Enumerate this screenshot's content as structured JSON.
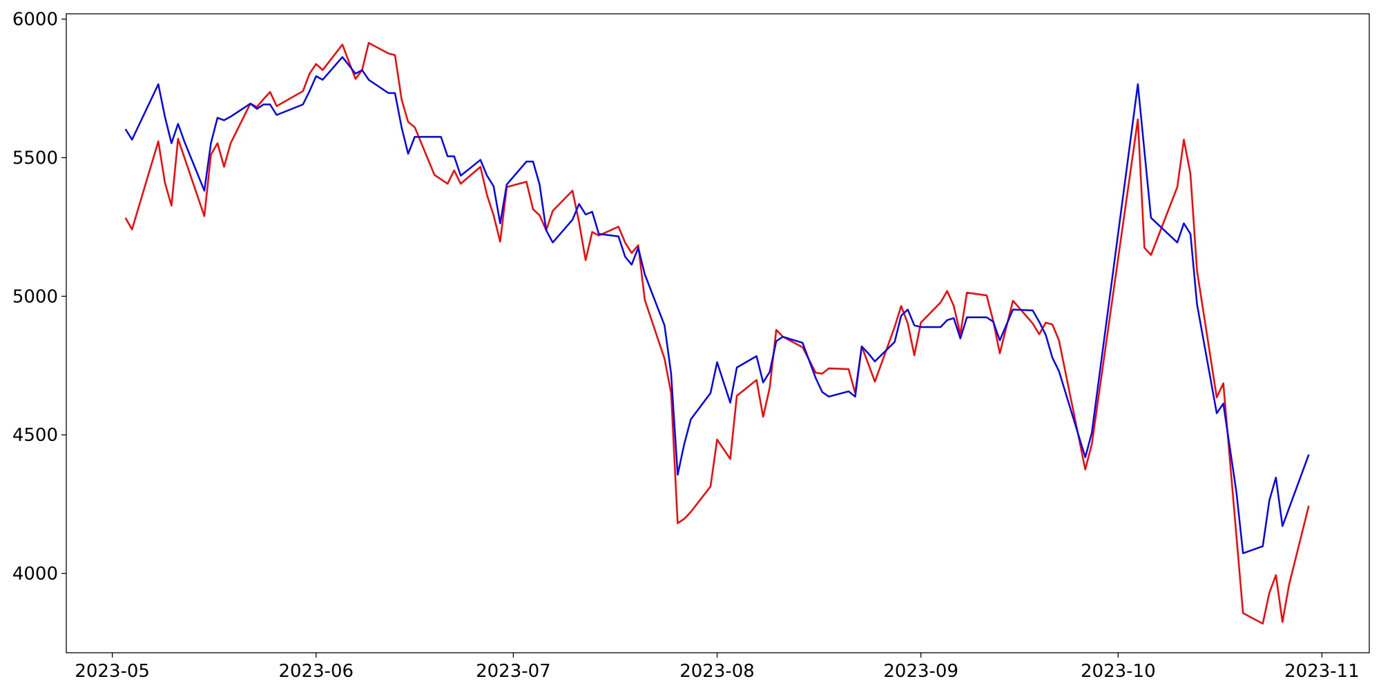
{
  "chart_data": {
    "type": "line",
    "xlim": [
      19471,
      19669.2
    ],
    "ylim": [
      3714,
      6019
    ],
    "xticks": [
      {
        "value": 19478,
        "label": "2023-05"
      },
      {
        "value": 19509,
        "label": "2023-06"
      },
      {
        "value": 19539,
        "label": "2023-07"
      },
      {
        "value": 19570,
        "label": "2023-08"
      },
      {
        "value": 19601,
        "label": "2023-09"
      },
      {
        "value": 19631,
        "label": "2023-10"
      },
      {
        "value": 19662,
        "label": "2023-11"
      }
    ],
    "yticks": [
      4000,
      4500,
      5000,
      5500,
      6000
    ],
    "grid": false,
    "series": [
      {
        "color": "#ff0000",
        "x": [
          19480,
          19481,
          19485,
          19486,
          19487,
          19488,
          19492,
          19493,
          19494,
          19495,
          19496,
          19499,
          19500,
          19501,
          19502,
          19503,
          19507,
          19508,
          19509,
          19510,
          19513,
          19515,
          19516,
          19517,
          19520,
          19521,
          19522,
          19523,
          19524,
          19527,
          19529,
          19530,
          19531,
          19534,
          19535,
          19536,
          19537,
          19538,
          19541,
          19542,
          19543,
          19544,
          19545,
          19548,
          19549,
          19550,
          19551,
          19552,
          19555,
          19556,
          19557,
          19558,
          19559,
          19562,
          19563,
          19564,
          19565,
          19566,
          19569,
          19570,
          19572,
          19573,
          19576,
          19577,
          19578,
          19579,
          19580,
          19583,
          19585,
          19586,
          19587,
          19590,
          19591,
          19592,
          19593,
          19594,
          19597,
          19598,
          19599,
          19600,
          19601,
          19604,
          19605,
          19606,
          19607,
          19608,
          19611,
          19612,
          19613,
          19615,
          19618,
          19619,
          19620,
          19621,
          19622,
          19626,
          19627,
          19634,
          19635,
          19636,
          19640,
          19641,
          19642,
          19643,
          19646,
          19647,
          19650,
          19653,
          19654,
          19655,
          19656,
          19657,
          19660
        ],
        "values": [
          5283,
          5241,
          5559,
          5410,
          5327,
          5568,
          5289,
          5511,
          5552,
          5467,
          5552,
          5695,
          5683,
          5711,
          5737,
          5686,
          5740,
          5803,
          5838,
          5816,
          5908,
          5784,
          5816,
          5914,
          5876,
          5870,
          5711,
          5629,
          5610,
          5438,
          5406,
          5454,
          5406,
          5467,
          5365,
          5292,
          5197,
          5394,
          5413,
          5314,
          5292,
          5238,
          5308,
          5381,
          5267,
          5130,
          5232,
          5219,
          5251,
          5194,
          5156,
          5184,
          4987,
          4775,
          4651,
          4181,
          4197,
          4222,
          4314,
          4483,
          4413,
          4641,
          4698,
          4565,
          4670,
          4879,
          4854,
          4816,
          4724,
          4721,
          4740,
          4737,
          4651,
          4819,
          4756,
          4692,
          4889,
          4965,
          4902,
          4787,
          4905,
          4978,
          5019,
          4965,
          4863,
          5013,
          5003,
          4911,
          4794,
          4984,
          4902,
          4863,
          4905,
          4898,
          4841,
          4375,
          4467,
          5638,
          5175,
          5149,
          5394,
          5565,
          5441,
          5092,
          4635,
          4686,
          3857,
          3819,
          3930,
          3994,
          3825,
          3959,
          4244
        ]
      },
      {
        "color": "#0000ff",
        "x": [
          19480,
          19481,
          19485,
          19486,
          19487,
          19488,
          19489,
          19492,
          19493,
          19494,
          19495,
          19496,
          19499,
          19500,
          19501,
          19502,
          19503,
          19507,
          19508,
          19509,
          19510,
          19513,
          19515,
          19516,
          19517,
          19520,
          19521,
          19522,
          19523,
          19524,
          19528,
          19529,
          19530,
          19531,
          19534,
          19535,
          19536,
          19537,
          19538,
          19541,
          19542,
          19543,
          19544,
          19545,
          19548,
          19549,
          19550,
          19551,
          19552,
          19555,
          19556,
          19557,
          19558,
          19559,
          19562,
          19563,
          19564,
          19565,
          19566,
          19569,
          19570,
          19572,
          19573,
          19576,
          19577,
          19578,
          19579,
          19580,
          19583,
          19585,
          19586,
          19587,
          19590,
          19591,
          19592,
          19593,
          19594,
          19597,
          19598,
          19599,
          19600,
          19601,
          19604,
          19605,
          19606,
          19607,
          19608,
          19611,
          19612,
          19613,
          19615,
          19618,
          19619,
          19620,
          19621,
          19622,
          19626,
          19627,
          19634,
          19636,
          19640,
          19641,
          19642,
          19643,
          19646,
          19647,
          19649,
          19650,
          19653,
          19654,
          19655,
          19656,
          19660
        ],
        "values": [
          5603,
          5565,
          5765,
          5648,
          5552,
          5622,
          5556,
          5381,
          5552,
          5644,
          5635,
          5648,
          5695,
          5676,
          5692,
          5692,
          5654,
          5692,
          5740,
          5794,
          5781,
          5863,
          5803,
          5816,
          5781,
          5733,
          5733,
          5610,
          5514,
          5575,
          5575,
          5505,
          5505,
          5435,
          5492,
          5435,
          5397,
          5263,
          5403,
          5486,
          5486,
          5403,
          5238,
          5194,
          5276,
          5333,
          5295,
          5305,
          5225,
          5216,
          5143,
          5114,
          5175,
          5079,
          4895,
          4721,
          4356,
          4467,
          4556,
          4651,
          4762,
          4616,
          4743,
          4784,
          4689,
          4727,
          4838,
          4854,
          4832,
          4705,
          4654,
          4638,
          4657,
          4638,
          4819,
          4794,
          4765,
          4835,
          4930,
          4952,
          4895,
          4889,
          4889,
          4914,
          4921,
          4848,
          4924,
          4924,
          4908,
          4841,
          4952,
          4949,
          4908,
          4860,
          4778,
          4730,
          4419,
          4508,
          5765,
          5283,
          5194,
          5263,
          5225,
          4971,
          4578,
          4613,
          4292,
          4073,
          4098,
          4263,
          4346,
          4171,
          4429
        ]
      }
    ]
  }
}
